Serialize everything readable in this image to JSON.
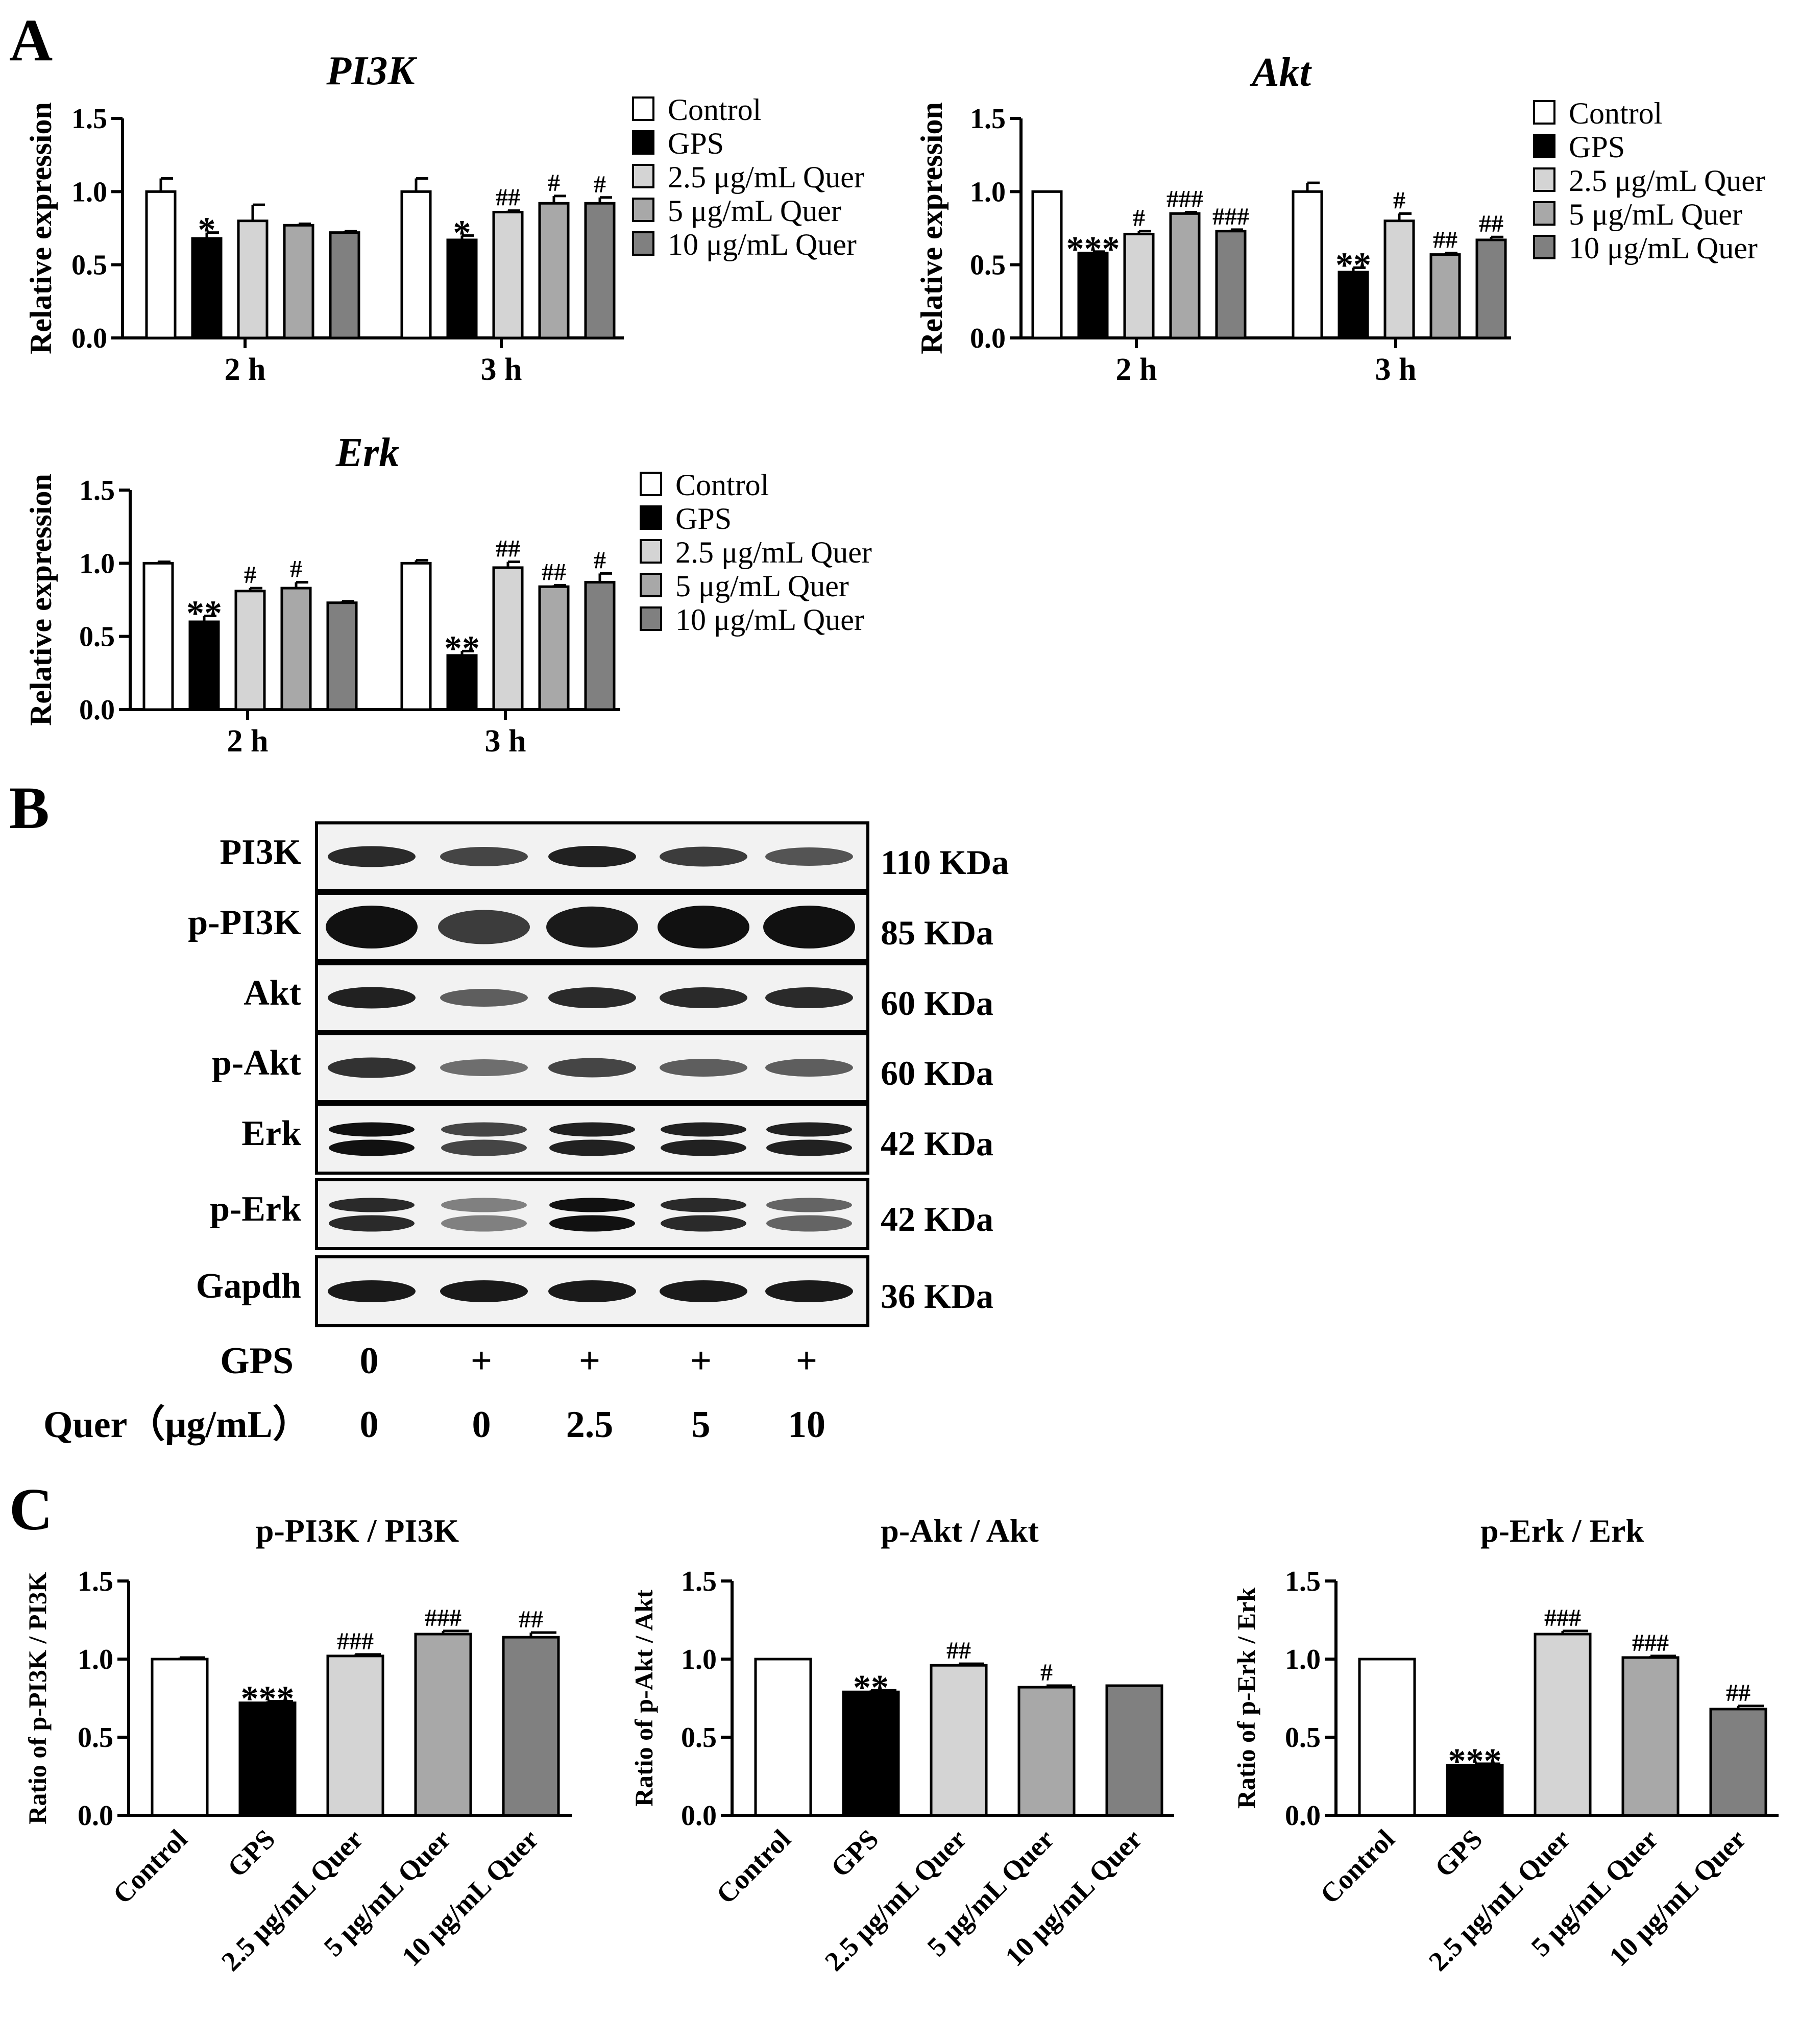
{
  "panels": {
    "a": "A",
    "b": "B",
    "c": "C"
  },
  "colors": [
    "#ffffff",
    "#000000",
    "#d4d4d4",
    "#a8a8a8",
    "#808080"
  ],
  "chart_data": [
    {
      "type": "bar",
      "title": "PI3K",
      "ylabel": "Relative expression",
      "categories": [
        "2 h",
        "3 h"
      ],
      "ylim": [
        0,
        1.5
      ],
      "yticks": [
        "0.0",
        "0.5",
        "1.0",
        "1.5"
      ],
      "series": [
        {
          "name": "Control",
          "values": [
            1.0,
            1.0
          ],
          "errors": [
            0.09,
            0.09
          ],
          "sig": [
            "",
            ""
          ]
        },
        {
          "name": "GPS",
          "values": [
            0.68,
            0.67
          ],
          "errors": [
            0.04,
            0.03
          ],
          "sig": [
            "*",
            "*"
          ]
        },
        {
          "name": "2.5 μg/mL Quer",
          "values": [
            0.8,
            0.86
          ],
          "errors": [
            0.11,
            0.01
          ],
          "sig": [
            "",
            "##"
          ]
        },
        {
          "name": "5 μg/mL Quer",
          "values": [
            0.77,
            0.92
          ],
          "errors": [
            0.01,
            0.05
          ],
          "sig": [
            "",
            "#"
          ]
        },
        {
          "name": "10 μg/mL Quer",
          "values": [
            0.72,
            0.92
          ],
          "errors": [
            0.01,
            0.04
          ],
          "sig": [
            "",
            "#"
          ]
        }
      ]
    },
    {
      "type": "bar",
      "title": "Akt",
      "ylabel": "Relative expression",
      "categories": [
        "2 h",
        "3 h"
      ],
      "ylim": [
        0,
        1.5
      ],
      "yticks": [
        "0.0",
        "0.5",
        "1.0",
        "1.5"
      ],
      "series": [
        {
          "name": "Control",
          "values": [
            1.0,
            1.0
          ],
          "errors": [
            0.0,
            0.06
          ],
          "sig": [
            "",
            ""
          ]
        },
        {
          "name": "GPS",
          "values": [
            0.58,
            0.45
          ],
          "errors": [
            0.01,
            0.03
          ],
          "sig": [
            "***",
            "**"
          ]
        },
        {
          "name": "2.5 μg/mL Quer",
          "values": [
            0.71,
            0.8
          ],
          "errors": [
            0.02,
            0.05
          ],
          "sig": [
            "#",
            "#"
          ]
        },
        {
          "name": "5 μg/mL Quer",
          "values": [
            0.85,
            0.57
          ],
          "errors": [
            0.01,
            0.01
          ],
          "sig": [
            "###",
            "##"
          ]
        },
        {
          "name": "10 μg/mL Quer",
          "values": [
            0.73,
            0.67
          ],
          "errors": [
            0.01,
            0.02
          ],
          "sig": [
            "###",
            "##"
          ]
        }
      ]
    },
    {
      "type": "bar",
      "title": "Erk",
      "ylabel": "Relative expression",
      "categories": [
        "2 h",
        "3 h"
      ],
      "ylim": [
        0,
        1.5
      ],
      "yticks": [
        "0.0",
        "0.5",
        "1.0",
        "1.5"
      ],
      "series": [
        {
          "name": "Control",
          "values": [
            1.0,
            1.0
          ],
          "errors": [
            0.01,
            0.02
          ],
          "sig": [
            "",
            ""
          ]
        },
        {
          "name": "GPS",
          "values": [
            0.6,
            0.37
          ],
          "errors": [
            0.04,
            0.03
          ],
          "sig": [
            "**",
            "**"
          ]
        },
        {
          "name": "2.5 μg/mL Quer",
          "values": [
            0.81,
            0.97
          ],
          "errors": [
            0.02,
            0.04
          ],
          "sig": [
            "#",
            "##"
          ]
        },
        {
          "name": "5 μg/mL Quer",
          "values": [
            0.83,
            0.84
          ],
          "errors": [
            0.04,
            0.01
          ],
          "sig": [
            "#",
            "##"
          ]
        },
        {
          "name": "10 μg/mL Quer",
          "values": [
            0.73,
            0.87
          ],
          "errors": [
            0.01,
            0.06
          ],
          "sig": [
            "",
            "#"
          ]
        }
      ]
    },
    {
      "type": "bar",
      "title": "p-PI3K / PI3K",
      "ylabel": "Ratio of  p-PI3K / PI3K",
      "categories": [
        "Control",
        "GPS",
        "2.5 μg/mL Quer",
        "5 μg/mL Quer",
        "10 μg/mL Quer"
      ],
      "ylim": [
        0,
        1.5
      ],
      "yticks": [
        "0.0",
        "0.5",
        "1.0",
        "1.5"
      ],
      "values": [
        1.0,
        0.72,
        1.02,
        1.16,
        1.14
      ],
      "errors": [
        0.01,
        0.01,
        0.01,
        0.02,
        0.03
      ],
      "sig": [
        "",
        "***",
        "###",
        "###",
        "##"
      ]
    },
    {
      "type": "bar",
      "title": "p-Akt / Akt",
      "ylabel": "Ratio of  p-Akt / Akt",
      "categories": [
        "Control",
        "GPS",
        "2.5 μg/mL  Quer",
        "5 μg/mL  Quer",
        "10 μg/mL  Quer"
      ],
      "ylim": [
        0,
        1.5
      ],
      "yticks": [
        "0.0",
        "0.5",
        "1.0",
        "1.5"
      ],
      "values": [
        1.0,
        0.79,
        0.96,
        0.82,
        0.83
      ],
      "errors": [
        0.0,
        0.01,
        0.01,
        0.01,
        0.0
      ],
      "sig": [
        "",
        "**",
        "##",
        "#",
        ""
      ]
    },
    {
      "type": "bar",
      "title": "p-Erk / Erk",
      "ylabel": "Ratio of  p-Erk / Erk",
      "categories": [
        "Control",
        "GPS",
        "2.5 μg/mL Quer",
        "5 μg/mL Quer",
        "10 μg/mL Quer"
      ],
      "ylim": [
        0,
        1.5
      ],
      "yticks": [
        "0.0",
        "0.5",
        "1.0",
        "1.5"
      ],
      "values": [
        1.0,
        0.32,
        1.16,
        1.01,
        0.68
      ],
      "errors": [
        0.0,
        0.01,
        0.02,
        0.01,
        0.02
      ],
      "sig": [
        "",
        "***",
        "###",
        "###",
        "##"
      ]
    }
  ],
  "western_blot": {
    "rows": [
      {
        "label": "PI3K",
        "kda": "110 KDa",
        "band_style": "single",
        "intensity": [
          0.85,
          0.7,
          0.9,
          0.75,
          0.6
        ]
      },
      {
        "label": "p-PI3K",
        "kda": "85 KDa",
        "band_style": "thick",
        "intensity": [
          1.0,
          0.75,
          0.95,
          1.0,
          1.0
        ]
      },
      {
        "label": "Akt",
        "kda": "60 KDa",
        "band_style": "single",
        "intensity": [
          0.9,
          0.55,
          0.85,
          0.85,
          0.85
        ]
      },
      {
        "label": "p-Akt",
        "kda": "60 KDa",
        "band_style": "single",
        "intensity": [
          0.8,
          0.45,
          0.7,
          0.55,
          0.55
        ]
      },
      {
        "label": "Erk",
        "kda": "42 KDa",
        "band_style": "double",
        "intensity": [
          1.0,
          0.7,
          0.9,
          0.9,
          0.9
        ]
      },
      {
        "label": "p-Erk",
        "kda": "42 KDa",
        "band_style": "double",
        "intensity": [
          0.85,
          0.35,
          1.0,
          0.85,
          0.5
        ]
      },
      {
        "label": "Gapdh",
        "kda": "36 KDa",
        "band_style": "single",
        "intensity": [
          0.95,
          0.95,
          0.95,
          0.95,
          0.95
        ]
      }
    ],
    "conditions": [
      {
        "label": "GPS",
        "values": [
          "0",
          "+",
          "+",
          "+",
          "+"
        ]
      },
      {
        "label": "Quer（μg/mL）",
        "values": [
          "0",
          "0",
          "2.5",
          "5",
          "10"
        ]
      }
    ]
  }
}
